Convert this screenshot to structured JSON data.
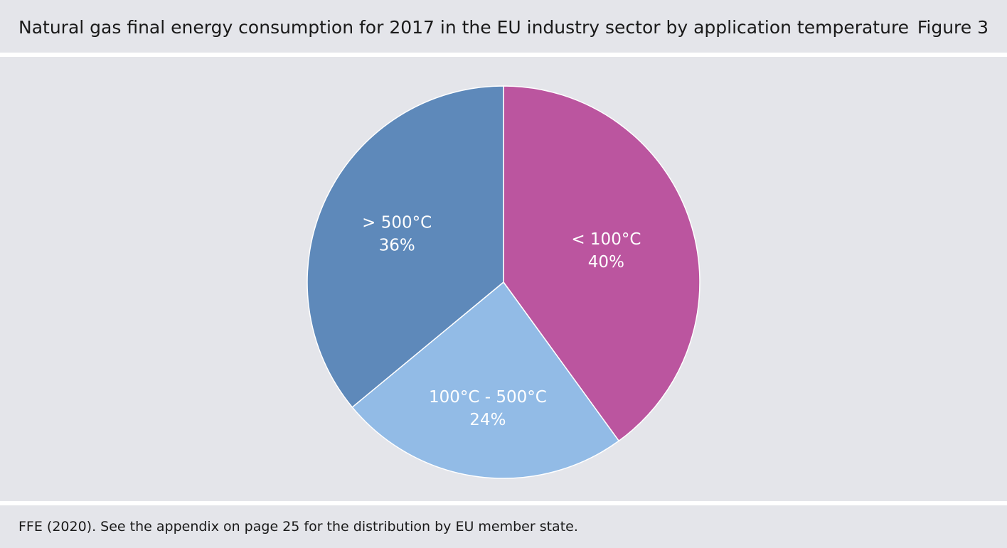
{
  "header": {
    "title": "Natural gas final energy consumption for 2017 in the EU industry sector by application temperature",
    "figure_label": "Figure 3"
  },
  "footer": {
    "source": "FFE (2020). See the appendix on page 25 for the distribution by EU member state."
  },
  "chart_data": {
    "type": "pie",
    "categories": [
      "< 100°C",
      "100°C - 500°C",
      "> 500°C"
    ],
    "values": [
      40,
      24,
      36
    ],
    "value_labels": [
      "40%",
      "24%",
      "36%"
    ],
    "colors": [
      "#bb559f",
      "#92bbe6",
      "#5e89ba"
    ],
    "start_angle": "12 o'clock",
    "direction": "clockwise"
  }
}
